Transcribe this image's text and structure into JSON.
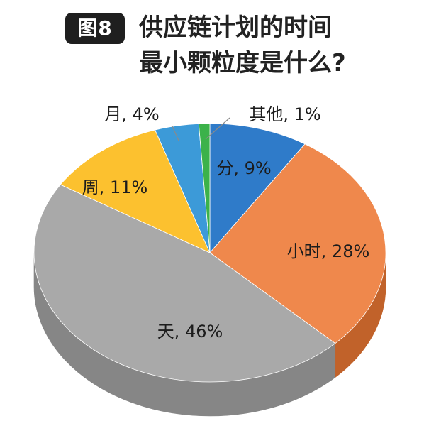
{
  "header": {
    "figure_tag": "图8",
    "title_line1": "供应链计划的时间",
    "title_line2": "最小颗粒度是什么?"
  },
  "chart_data": {
    "type": "pie",
    "title": "供应链计划的时间最小颗粒度是什么?",
    "slices": [
      {
        "label": "分",
        "value": 9,
        "display": "分, 9%",
        "color": "#2f7bc9",
        "side": "#22598f"
      },
      {
        "label": "小时",
        "value": 28,
        "display": "小时, 28%",
        "color": "#ef884c",
        "side": "#c1622a"
      },
      {
        "label": "天",
        "value": 46,
        "display": "天, 46%",
        "color": "#a9a9a9",
        "side": "#868686"
      },
      {
        "label": "周",
        "value": 11,
        "display": "周, 11%",
        "color": "#fcc12f",
        "side": "#cc9619"
      },
      {
        "label": "月",
        "value": 4,
        "display": "月, 4%",
        "color": "#3c9ad8",
        "side": "#2a73a6"
      },
      {
        "label": "其他",
        "value": 1,
        "display": "其他, 1%",
        "color": "#3cb24a",
        "side": "#2c8537"
      }
    ],
    "style": "3d-tilted",
    "legend": "none"
  }
}
